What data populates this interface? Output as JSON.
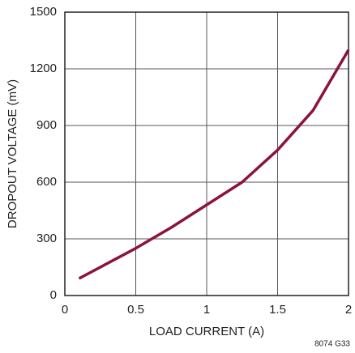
{
  "chart_data": {
    "type": "line",
    "xlabel": "LOAD CURRENT (A)",
    "ylabel": "DROPOUT VOLTAGE (mV)",
    "annotation": "8074 G33",
    "x": [
      0.1,
      0.5,
      0.75,
      1,
      1.25,
      1.5,
      1.75,
      2
    ],
    "series": [
      {
        "name": "Dropout Voltage",
        "color": "#8b1538",
        "values": [
          90,
          250,
          360,
          480,
          600,
          770,
          980,
          1300
        ]
      }
    ],
    "xlim": [
      0,
      2
    ],
    "xticks": [
      0,
      0.5,
      1,
      1.5,
      2
    ],
    "ylim": [
      0,
      1500
    ],
    "yticks": [
      0,
      300,
      600,
      900,
      1200,
      1500
    ],
    "grid": true
  }
}
